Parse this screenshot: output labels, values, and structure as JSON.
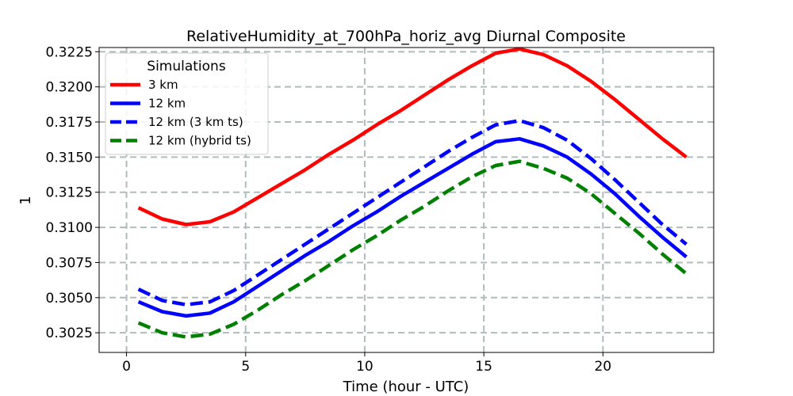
{
  "chart_data": {
    "type": "line",
    "title": "RelativeHumidity_at_700hPa_horiz_avg Diurnal Composite",
    "xlabel": "Time (hour - UTC)",
    "ylabel": "1",
    "xlim": [
      -1.15,
      24.65
    ],
    "ylim": [
      0.3011,
      0.3228
    ],
    "xticks": [
      0,
      5,
      10,
      15,
      20
    ],
    "xtick_labels": [
      "0",
      "5",
      "10",
      "15",
      "20"
    ],
    "yticks": [
      0.3025,
      0.305,
      0.3075,
      0.31,
      0.3125,
      0.315,
      0.3175,
      0.32,
      0.3225
    ],
    "ytick_labels": [
      "0.3025",
      "0.3050",
      "0.3075",
      "0.3100",
      "0.3125",
      "0.3150",
      "0.3175",
      "0.3200",
      "0.3225"
    ],
    "grid": true,
    "legend_title": "Simulations",
    "legend_position": "top-left",
    "x": [
      0.5,
      1.5,
      2.5,
      3.5,
      4.5,
      5.5,
      6.5,
      7.5,
      8.5,
      9.5,
      10.5,
      11.5,
      12.5,
      13.5,
      14.5,
      15.5,
      16.5,
      17.5,
      18.5,
      19.5,
      20.5,
      21.5,
      22.5,
      23.5
    ],
    "series": [
      {
        "name": "3 km",
        "color": "#ff0000",
        "dash": "solid",
        "values": [
          0.3114,
          0.3106,
          0.3102,
          0.3104,
          0.3111,
          0.3121,
          0.3131,
          0.3141,
          0.3152,
          0.3162,
          0.3173,
          0.3183,
          0.3194,
          0.3205,
          0.3215,
          0.3224,
          0.3227,
          0.3223,
          0.3215,
          0.3204,
          0.3191,
          0.3177,
          0.3163,
          0.315
        ]
      },
      {
        "name": "12 km",
        "color": "#0000ff",
        "dash": "solid",
        "values": [
          0.3047,
          0.304,
          0.3037,
          0.3039,
          0.3047,
          0.3058,
          0.3069,
          0.308,
          0.309,
          0.3101,
          0.3111,
          0.3122,
          0.3132,
          0.3142,
          0.3152,
          0.3161,
          0.3163,
          0.3158,
          0.315,
          0.3138,
          0.3124,
          0.3108,
          0.3093,
          0.3079
        ]
      },
      {
        "name": "12 km (3 km ts)",
        "color": "#0000ff",
        "dash": "dashed",
        "values": [
          0.3056,
          0.3048,
          0.3045,
          0.3047,
          0.3055,
          0.3066,
          0.3077,
          0.3088,
          0.3099,
          0.311,
          0.3121,
          0.3132,
          0.3143,
          0.3154,
          0.3164,
          0.3173,
          0.3176,
          0.3171,
          0.3162,
          0.3149,
          0.3134,
          0.3118,
          0.3102,
          0.3088
        ]
      },
      {
        "name": "12 km (hybrid ts)",
        "color": "#008000",
        "dash": "dashed",
        "values": [
          0.3032,
          0.3025,
          0.3022,
          0.3024,
          0.3031,
          0.3041,
          0.3052,
          0.3062,
          0.3073,
          0.3084,
          0.3094,
          0.3105,
          0.3115,
          0.3126,
          0.3136,
          0.3144,
          0.3147,
          0.3142,
          0.3135,
          0.3124,
          0.311,
          0.3096,
          0.3081,
          0.3067
        ]
      }
    ]
  }
}
